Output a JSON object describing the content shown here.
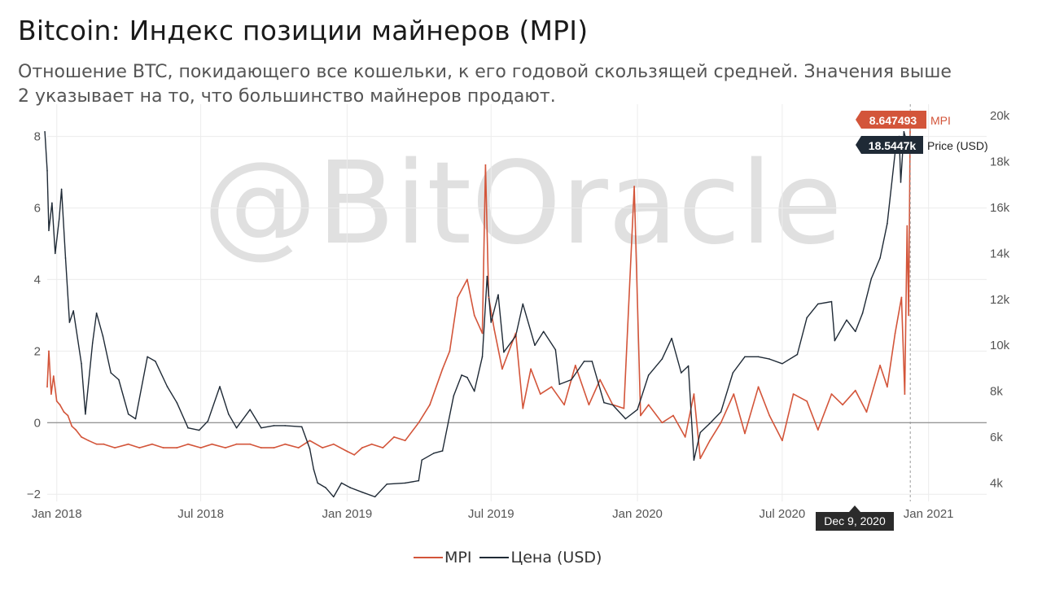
{
  "header": {
    "title": "Bitcoin: Индекс позиции майнеров (MPI)",
    "subtitle": "Отношение BTC, покидающего все кошельки, к его годовой скользящей средней. Значения выше 2 указывает на то, что большинство майнеров продают."
  },
  "watermark": "@BitOracle",
  "colors": {
    "mpi": "#d3553a",
    "price": "#1f2a36",
    "grid": "#ececec",
    "zero_line": "#777777"
  },
  "tooltips": {
    "mpi_value": "8.647493",
    "mpi_label": "MPI",
    "price_value": "18.5447k",
    "price_label": "Price (USD)",
    "date": "Dec 9, 2020"
  },
  "legend": [
    {
      "name": "MPI",
      "color": "#d3553a"
    },
    {
      "name": "Цена (USD)",
      "color": "#1f2a36"
    }
  ],
  "chart_data": {
    "type": "line",
    "x_ticks": [
      "Jan 2018",
      "Jul 2018",
      "Jan 2019",
      "Jul 2019",
      "Jan 2020",
      "Jul 2020",
      "Jan 2021"
    ],
    "y_left": {
      "ticks": [
        -2,
        0,
        2,
        4,
        6,
        8
      ],
      "range": [
        -2.2,
        8.9
      ]
    },
    "y_right": {
      "ticks": [
        "4k",
        "6k",
        "8k",
        "10k",
        "12k",
        "14k",
        "16k",
        "18k",
        "20k"
      ],
      "range": [
        3200,
        20500
      ]
    },
    "x_range": [
      "2017-12-20",
      "2021-03-15"
    ],
    "series": [
      {
        "name": "MPI",
        "axis": "left",
        "x": [
          "2017-12-20",
          "2017-12-22",
          "2017-12-25",
          "2017-12-28",
          "2018-01-01",
          "2018-01-05",
          "2018-01-10",
          "2018-01-15",
          "2018-01-20",
          "2018-01-25",
          "2018-02-01",
          "2018-02-10",
          "2018-02-20",
          "2018-03-01",
          "2018-03-15",
          "2018-04-01",
          "2018-04-15",
          "2018-05-01",
          "2018-05-15",
          "2018-06-01",
          "2018-06-15",
          "2018-07-01",
          "2018-07-15",
          "2018-08-01",
          "2018-08-15",
          "2018-09-01",
          "2018-09-15",
          "2018-10-01",
          "2018-10-15",
          "2018-11-01",
          "2018-11-15",
          "2018-12-01",
          "2018-12-15",
          "2019-01-01",
          "2019-01-10",
          "2019-01-20",
          "2019-02-01",
          "2019-02-15",
          "2019-03-01",
          "2019-03-15",
          "2019-04-01",
          "2019-04-15",
          "2019-05-01",
          "2019-05-10",
          "2019-05-20",
          "2019-06-01",
          "2019-06-10",
          "2019-06-20",
          "2019-06-24",
          "2019-06-28",
          "2019-07-05",
          "2019-07-15",
          "2019-08-01",
          "2019-08-10",
          "2019-08-20",
          "2019-09-01",
          "2019-09-15",
          "2019-10-01",
          "2019-10-15",
          "2019-11-01",
          "2019-11-15",
          "2019-12-01",
          "2019-12-15",
          "2019-12-28",
          "2020-01-05",
          "2020-01-15",
          "2020-02-01",
          "2020-02-15",
          "2020-03-01",
          "2020-03-12",
          "2020-03-20",
          "2020-04-01",
          "2020-04-15",
          "2020-05-01",
          "2020-05-15",
          "2020-06-01",
          "2020-06-15",
          "2020-07-01",
          "2020-07-15",
          "2020-08-01",
          "2020-08-15",
          "2020-09-01",
          "2020-09-15",
          "2020-10-01",
          "2020-10-15",
          "2020-11-01",
          "2020-11-10",
          "2020-11-20",
          "2020-11-28",
          "2020-12-02",
          "2020-12-05",
          "2020-12-07",
          "2020-12-09"
        ],
        "values": [
          1.0,
          2.0,
          0.8,
          1.3,
          0.6,
          0.5,
          0.3,
          0.2,
          -0.1,
          -0.2,
          -0.4,
          -0.5,
          -0.6,
          -0.6,
          -0.7,
          -0.6,
          -0.7,
          -0.6,
          -0.7,
          -0.7,
          -0.6,
          -0.7,
          -0.6,
          -0.7,
          -0.6,
          -0.6,
          -0.7,
          -0.7,
          -0.6,
          -0.7,
          -0.5,
          -0.7,
          -0.6,
          -0.8,
          -0.9,
          -0.7,
          -0.6,
          -0.7,
          -0.4,
          -0.5,
          0.0,
          0.5,
          1.5,
          2.0,
          3.5,
          4.0,
          3.0,
          2.5,
          7.2,
          3.5,
          2.6,
          1.5,
          2.5,
          0.4,
          1.5,
          0.8,
          1.0,
          0.5,
          1.6,
          0.5,
          1.2,
          0.5,
          0.4,
          6.6,
          0.2,
          0.5,
          0.0,
          0.2,
          -0.4,
          0.8,
          -1.0,
          -0.5,
          0.0,
          0.8,
          -0.3,
          1.0,
          0.2,
          -0.5,
          0.8,
          0.6,
          -0.2,
          0.8,
          0.5,
          0.9,
          0.3,
          1.6,
          1.0,
          2.5,
          3.5,
          0.8,
          5.5,
          3.0,
          8.647493
        ]
      },
      {
        "name": "Цена (USD)",
        "axis": "right",
        "x": [
          "2017-12-17",
          "2017-12-20",
          "2017-12-22",
          "2017-12-26",
          "2017-12-30",
          "2018-01-04",
          "2018-01-07",
          "2018-01-12",
          "2018-01-17",
          "2018-01-22",
          "2018-02-01",
          "2018-02-06",
          "2018-02-15",
          "2018-02-20",
          "2018-02-28",
          "2018-03-10",
          "2018-03-20",
          "2018-04-01",
          "2018-04-10",
          "2018-04-25",
          "2018-05-05",
          "2018-05-20",
          "2018-06-01",
          "2018-06-15",
          "2018-06-29",
          "2018-07-10",
          "2018-07-25",
          "2018-08-05",
          "2018-08-15",
          "2018-09-01",
          "2018-09-15",
          "2018-10-01",
          "2018-10-15",
          "2018-11-05",
          "2018-11-15",
          "2018-11-20",
          "2018-11-25",
          "2018-12-05",
          "2018-12-15",
          "2018-12-25",
          "2019-01-05",
          "2019-01-20",
          "2019-02-05",
          "2019-02-20",
          "2019-03-15",
          "2019-04-01",
          "2019-04-05",
          "2019-04-20",
          "2019-05-01",
          "2019-05-15",
          "2019-05-25",
          "2019-06-01",
          "2019-06-10",
          "2019-06-20",
          "2019-06-26",
          "2019-07-01",
          "2019-07-10",
          "2019-07-17",
          "2019-08-01",
          "2019-08-10",
          "2019-08-25",
          "2019-09-05",
          "2019-09-20",
          "2019-09-25",
          "2019-10-10",
          "2019-10-26",
          "2019-11-05",
          "2019-11-20",
          "2019-12-01",
          "2019-12-17",
          "2020-01-01",
          "2020-01-15",
          "2020-02-01",
          "2020-02-13",
          "2020-02-25",
          "2020-03-05",
          "2020-03-12",
          "2020-03-20",
          "2020-04-01",
          "2020-04-15",
          "2020-04-30",
          "2020-05-15",
          "2020-06-01",
          "2020-06-15",
          "2020-07-01",
          "2020-07-20",
          "2020-08-01",
          "2020-08-15",
          "2020-09-01",
          "2020-09-05",
          "2020-09-20",
          "2020-10-01",
          "2020-10-10",
          "2020-10-21",
          "2020-11-01",
          "2020-11-10",
          "2020-11-20",
          "2020-11-25",
          "2020-11-27",
          "2020-12-01",
          "2020-12-05",
          "2020-12-09"
        ],
        "values": [
          19300,
          17600,
          15000,
          16200,
          14000,
          15500,
          16800,
          13800,
          11000,
          11500,
          9200,
          7000,
          10100,
          11400,
          10400,
          8800,
          8500,
          7000,
          6800,
          9500,
          9300,
          8200,
          7500,
          6400,
          6300,
          6700,
          8200,
          7000,
          6400,
          7200,
          6400,
          6500,
          6500,
          6450,
          5500,
          4600,
          4000,
          3800,
          3400,
          4000,
          3800,
          3600,
          3400,
          3950,
          4000,
          4100,
          5000,
          5300,
          5400,
          7800,
          8700,
          8600,
          8000,
          9500,
          13000,
          11000,
          12200,
          9700,
          10400,
          11800,
          10000,
          10600,
          9800,
          8300,
          8500,
          9300,
          9300,
          7500,
          7400,
          6800,
          7200,
          8700,
          9400,
          10300,
          8800,
          9100,
          5000,
          6200,
          6600,
          7100,
          8800,
          9500,
          9500,
          9400,
          9200,
          9600,
          11200,
          11800,
          11900,
          10200,
          11100,
          10600,
          11400,
          12900,
          13800,
          15300,
          18400,
          19100,
          17100,
          19300,
          18800,
          18544.7
        ]
      }
    ]
  }
}
